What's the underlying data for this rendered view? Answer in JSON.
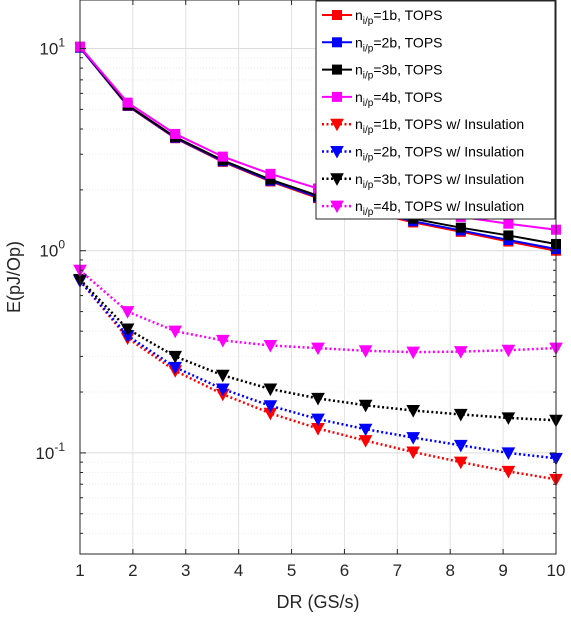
{
  "chart_data": {
    "type": "line",
    "xlabel": "DR (GS/s)",
    "ylabel": "E(pJ/Op)",
    "xlim": [
      1,
      10
    ],
    "ylim_log10": [
      -1.5,
      1.24
    ],
    "yscale": "log",
    "grid": true,
    "legend_position": "top-right",
    "x": [
      1,
      1.9,
      2.8,
      3.7,
      4.6,
      5.5,
      6.4,
      7.3,
      8.2,
      9.1,
      10
    ],
    "x_ticks": [
      "1",
      "2",
      "3",
      "4",
      "5",
      "6",
      "7",
      "8",
      "9",
      "10"
    ],
    "y_ticks": [
      {
        "base": "10",
        "exp": "-1",
        "value": 0.1
      },
      {
        "base": "10",
        "exp": "0",
        "value": 1
      },
      {
        "base": "10",
        "exp": "1",
        "value": 10
      }
    ],
    "series": [
      {
        "name_main": "n",
        "name_sub": "i/p",
        "name_rest": "=1b, TOPS",
        "color": "#ff0000",
        "style": "solid",
        "marker": "square",
        "values": [
          10.1,
          5.2,
          3.6,
          2.75,
          2.2,
          1.82,
          1.57,
          1.38,
          1.24,
          1.11,
          1.0
        ]
      },
      {
        "name_main": "n",
        "name_sub": "i/p",
        "name_rest": "=2b, TOPS",
        "color": "#0000ff",
        "style": "solid",
        "marker": "square",
        "values": [
          10.1,
          5.22,
          3.62,
          2.77,
          2.22,
          1.84,
          1.59,
          1.4,
          1.26,
          1.13,
          1.02
        ]
      },
      {
        "name_main": "n",
        "name_sub": "i/p",
        "name_rest": "=3b, TOPS",
        "color": "#000000",
        "style": "solid",
        "marker": "square",
        "values": [
          10.2,
          5.25,
          3.65,
          2.8,
          2.25,
          1.87,
          1.63,
          1.44,
          1.3,
          1.19,
          1.08
        ]
      },
      {
        "name_main": "n",
        "name_sub": "i/p",
        "name_rest": "=4b, TOPS",
        "color": "#ff00ff",
        "style": "solid",
        "marker": "square",
        "values": [
          10.2,
          5.4,
          3.78,
          2.92,
          2.4,
          2.03,
          1.79,
          1.6,
          1.47,
          1.36,
          1.27
        ]
      },
      {
        "name_main": "n",
        "name_sub": "i/p",
        "name_rest": "=1b, TOPS w/ Insulation",
        "color": "#ff0000",
        "style": "dotted",
        "marker": "triangle-down",
        "values": [
          0.71,
          0.37,
          0.255,
          0.195,
          0.157,
          0.132,
          0.115,
          0.101,
          0.09,
          0.081,
          0.074
        ]
      },
      {
        "name_main": "n",
        "name_sub": "i/p",
        "name_rest": "=2b, TOPS w/ Insulation",
        "color": "#0000ff",
        "style": "dotted",
        "marker": "triangle-down",
        "values": [
          0.71,
          0.38,
          0.265,
          0.207,
          0.171,
          0.147,
          0.131,
          0.119,
          0.109,
          0.1,
          0.094
        ]
      },
      {
        "name_main": "n",
        "name_sub": "i/p",
        "name_rest": "=3b, TOPS w/ Insulation",
        "color": "#000000",
        "style": "dotted",
        "marker": "triangle-down",
        "values": [
          0.72,
          0.41,
          0.3,
          0.242,
          0.207,
          0.186,
          0.172,
          0.162,
          0.155,
          0.149,
          0.145
        ]
      },
      {
        "name_main": "n",
        "name_sub": "i/p",
        "name_rest": "=4b, TOPS w/ Insulation",
        "color": "#ff00ff",
        "style": "dotted",
        "marker": "triangle-down",
        "values": [
          0.8,
          0.5,
          0.4,
          0.36,
          0.34,
          0.33,
          0.32,
          0.315,
          0.317,
          0.322,
          0.33
        ]
      }
    ]
  }
}
